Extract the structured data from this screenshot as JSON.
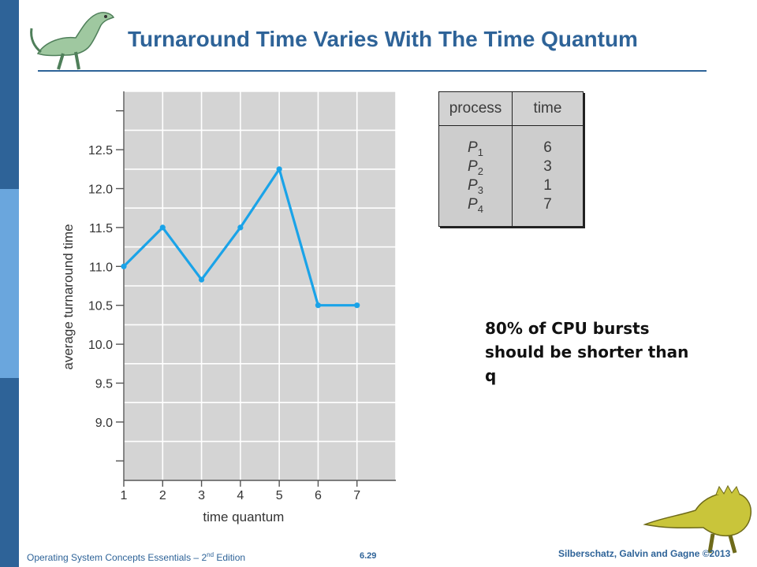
{
  "slide": {
    "title": "Turnaround Time Varies With The Time Quantum",
    "note": "80% of CPU bursts should be shorter than q",
    "footer_left_prefix": "Operating System Concepts Essentials – 2",
    "footer_left_sup": "nd",
    "footer_left_suffix": " Edition",
    "page_number": "6.29",
    "footer_right": "Silberschatz, Galvin and Gagne ©2013",
    "colors": {
      "accent": "#2e6398",
      "sidebar_band": "#6aa6dd",
      "line": "#1aa3e8",
      "plot_bg": "#d4d4d4"
    }
  },
  "process_table": {
    "headers": [
      "process",
      "time"
    ],
    "rows": [
      {
        "name": "P",
        "sub": "1",
        "time": "6"
      },
      {
        "name": "P",
        "sub": "2",
        "time": "3"
      },
      {
        "name": "P",
        "sub": "3",
        "time": "1"
      },
      {
        "name": "P",
        "sub": "4",
        "time": "7"
      }
    ]
  },
  "chart_data": {
    "type": "line",
    "xlabel": "time quantum",
    "ylabel": "average turnaround time",
    "x": [
      1,
      2,
      3,
      4,
      5,
      6,
      7
    ],
    "series": [
      {
        "values": [
          11.0,
          11.5,
          10.83,
          11.5,
          12.25,
          10.5,
          10.5
        ]
      }
    ],
    "xticks": [
      "1",
      "2",
      "3",
      "4",
      "5",
      "6",
      "7"
    ],
    "yticks": [
      "9.0",
      "9.5",
      "10.0",
      "10.5",
      "11.0",
      "11.5",
      "12.0",
      "12.5"
    ],
    "ylim": [
      8.25,
      13.25
    ],
    "xlim": [
      1,
      8
    ],
    "grid": true
  }
}
